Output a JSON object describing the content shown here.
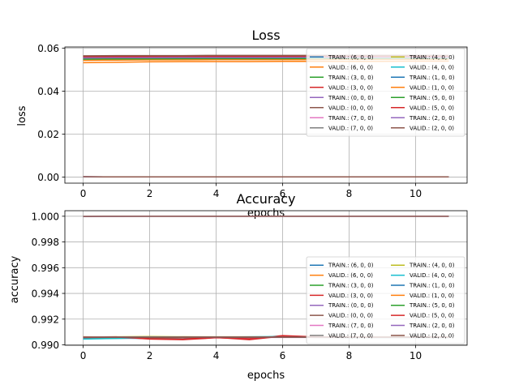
{
  "chart_data": [
    {
      "type": "line",
      "title": "Loss",
      "xlabel": "epochs",
      "ylabel": "loss",
      "xlim": [
        -0.55,
        11.55
      ],
      "ylim": [
        -0.0028,
        0.0605
      ],
      "xticks": [
        0,
        2,
        4,
        6,
        8,
        10
      ],
      "yticks": [
        0.0,
        0.02,
        0.04,
        0.06
      ],
      "ytick_labels": [
        "0.00",
        "0.02",
        "0.04",
        "0.06"
      ],
      "grid": true,
      "legend_position": "upper-right",
      "legend_columns": 2,
      "x": [
        0,
        1,
        2,
        3,
        4,
        5,
        6,
        7,
        8,
        9,
        10,
        11
      ],
      "series": [
        {
          "name": "TRAIN.: (6, 0, 0)",
          "color": "#1f77b4",
          "values": [
            0.055,
            0.0551,
            0.0551,
            0.0552,
            0.0552,
            0.0552,
            0.0553,
            0.0553,
            0.0553,
            0.0553,
            0.0553,
            0.0553
          ]
        },
        {
          "name": "VALID.: (6, 0, 0)",
          "color": "#ff7f0e",
          "values": [
            0.0532,
            0.0534,
            0.0536,
            0.0537,
            0.0537,
            0.0537,
            0.0538,
            0.0538,
            0.0538,
            0.0538,
            0.0539,
            0.0539
          ]
        },
        {
          "name": "TRAIN.: (3, 0, 0)",
          "color": "#2ca02c",
          "values": [
            0.0545,
            0.0546,
            0.0547,
            0.0547,
            0.0548,
            0.0548,
            0.0548,
            0.0549,
            0.0549,
            0.0549,
            0.0549,
            0.0549
          ]
        },
        {
          "name": "VALID.: (3, 0, 0)",
          "color": "#d62728",
          "values": [
            0.0562,
            0.0562,
            0.0563,
            0.0563,
            0.0563,
            0.0563,
            0.0564,
            0.0564,
            0.0564,
            0.0564,
            0.0564,
            0.0564
          ]
        },
        {
          "name": "TRAIN.: (0, 0, 0)",
          "color": "#9467bd",
          "values": [
            0.0002,
            0.0001,
            0.0001,
            0.0001,
            0.0001,
            0.0001,
            0.0001,
            0.0001,
            0.0001,
            0.0001,
            0.0001,
            0.0001
          ]
        },
        {
          "name": "VALID.: (0, 0, 0)",
          "color": "#8c564b",
          "values": [
            0.0002,
            0.0001,
            0.0001,
            0.0001,
            0.0001,
            0.0001,
            0.0001,
            0.0001,
            0.0001,
            0.0001,
            0.0001,
            0.0001
          ]
        },
        {
          "name": "TRAIN.: (7, 0, 0)",
          "color": "#e377c2",
          "values": [
            0.0556,
            0.0557,
            0.0557,
            0.0558,
            0.0558,
            0.0558,
            0.0558,
            0.0559,
            0.0559,
            0.0559,
            0.0559,
            0.0559
          ]
        },
        {
          "name": "VALID.: (7, 0, 0)",
          "color": "#7f7f7f",
          "values": [
            0.0558,
            0.0559,
            0.0559,
            0.0559,
            0.056,
            0.056,
            0.056,
            0.056,
            0.056,
            0.056,
            0.056,
            0.056
          ]
        },
        {
          "name": "TRAIN.: (4, 0, 0)",
          "color": "#bcbd22",
          "values": [
            0.0552,
            0.0553,
            0.0553,
            0.0554,
            0.0554,
            0.0554,
            0.0555,
            0.0555,
            0.0555,
            0.0555,
            0.0555,
            0.0555
          ]
        },
        {
          "name": "VALID.: (4, 0, 0)",
          "color": "#17becf",
          "values": [
            0.0547,
            0.0548,
            0.0548,
            0.0549,
            0.0549,
            0.0549,
            0.0549,
            0.055,
            0.055,
            0.055,
            0.055,
            0.055
          ]
        },
        {
          "name": "TRAIN.: (1, 0, 0)",
          "color": "#1f77b4",
          "values": [
            0.0551,
            0.0552,
            0.0552,
            0.0553,
            0.0553,
            0.0553,
            0.0553,
            0.0554,
            0.0554,
            0.0554,
            0.0554,
            0.0554
          ]
        },
        {
          "name": "VALID.: (1, 0, 0)",
          "color": "#ff7f0e",
          "values": [
            0.0543,
            0.0544,
            0.0545,
            0.0545,
            0.0546,
            0.0546,
            0.0546,
            0.0546,
            0.0547,
            0.0547,
            0.0547,
            0.0547
          ]
        },
        {
          "name": "TRAIN.: (5, 0, 0)",
          "color": "#2ca02c",
          "values": [
            0.0549,
            0.055,
            0.055,
            0.0551,
            0.0551,
            0.0551,
            0.0551,
            0.0552,
            0.0552,
            0.0552,
            0.0552,
            0.0552
          ]
        },
        {
          "name": "VALID.: (5, 0, 0)",
          "color": "#d62728",
          "values": [
            0.056,
            0.056,
            0.0561,
            0.0561,
            0.0561,
            0.0561,
            0.0562,
            0.0562,
            0.0562,
            0.0562,
            0.0562,
            0.0562
          ]
        },
        {
          "name": "TRAIN.: (2, 0, 0)",
          "color": "#9467bd",
          "values": [
            0.0554,
            0.0555,
            0.0555,
            0.0556,
            0.0556,
            0.0556,
            0.0556,
            0.0557,
            0.0557,
            0.0557,
            0.0557,
            0.0557
          ]
        },
        {
          "name": "VALID.: (2, 0, 0)",
          "color": "#8c564b",
          "values": [
            0.0564,
            0.0565,
            0.0565,
            0.0565,
            0.0566,
            0.0566,
            0.0566,
            0.0566,
            0.0566,
            0.0566,
            0.0566,
            0.0566
          ]
        }
      ]
    },
    {
      "type": "line",
      "title": "Accuracy",
      "xlabel": "epochs",
      "ylabel": "accuracy",
      "xlim": [
        -0.55,
        11.55
      ],
      "ylim": [
        0.98997,
        1.00043
      ],
      "xticks": [
        0,
        2,
        4,
        6,
        8,
        10
      ],
      "yticks": [
        0.99,
        0.992,
        0.994,
        0.996,
        0.998,
        1.0
      ],
      "ytick_labels": [
        "0.990",
        "0.992",
        "0.994",
        "0.996",
        "0.998",
        "1.000"
      ],
      "grid": true,
      "legend_position": "lower-right",
      "legend_columns": 2,
      "x": [
        0,
        1,
        2,
        3,
        4,
        5,
        6,
        7,
        8,
        9,
        10,
        11
      ],
      "series": [
        {
          "name": "TRAIN.: (6, 0, 0)",
          "color": "#1f77b4",
          "values": [
            0.99048,
            0.99052,
            0.9905,
            0.99055,
            0.99056,
            0.9906,
            0.99062,
            0.9906,
            0.99058,
            0.9906,
            0.99061,
            0.9906
          ]
        },
        {
          "name": "VALID.: (6, 0, 0)",
          "color": "#ff7f0e",
          "values": [
            0.99062,
            0.9906,
            0.99058,
            0.99062,
            0.9906,
            0.99058,
            0.99062,
            0.9906,
            0.9906,
            0.9906,
            0.9906,
            0.9906
          ]
        },
        {
          "name": "TRAIN.: (3, 0, 0)",
          "color": "#2ca02c",
          "values": [
            0.99055,
            0.99058,
            0.99058,
            0.9906,
            0.99058,
            0.9906,
            0.9906,
            0.99058,
            0.99058,
            0.99058,
            0.99058,
            0.99058
          ]
        },
        {
          "name": "VALID.: (3, 0, 0)",
          "color": "#d62728",
          "values": [
            0.9906,
            0.99062,
            0.99045,
            0.9904,
            0.99055,
            0.99048,
            0.99072,
            0.99062,
            0.9906,
            0.9906,
            0.9906,
            0.9906
          ]
        },
        {
          "name": "TRAIN.: (0, 0, 0)",
          "color": "#9467bd",
          "values": [
            0.99998,
            0.99999,
            1.0,
            1.0,
            1.0,
            1.0,
            1.0,
            1.0,
            1.0,
            1.0,
            1.0,
            1.0
          ]
        },
        {
          "name": "VALID.: (0, 0, 0)",
          "color": "#8c564b",
          "values": [
            0.99999,
            1.0,
            1.0,
            1.0,
            1.0,
            1.0,
            1.0,
            1.0,
            1.0,
            1.0,
            1.0,
            1.0
          ]
        },
        {
          "name": "TRAIN.: (7, 0, 0)",
          "color": "#e377c2",
          "values": [
            0.99056,
            0.99058,
            0.99058,
            0.99058,
            0.99058,
            0.99058,
            0.99058,
            0.99058,
            0.99058,
            0.99058,
            0.99058,
            0.99058
          ]
        },
        {
          "name": "VALID.: (7, 0, 0)",
          "color": "#7f7f7f",
          "values": [
            0.99058,
            0.99058,
            0.9906,
            0.9906,
            0.9906,
            0.9906,
            0.9906,
            0.9906,
            0.9906,
            0.9906,
            0.9906,
            0.9906
          ]
        },
        {
          "name": "TRAIN.: (4, 0, 0)",
          "color": "#bcbd22",
          "values": [
            0.9906,
            0.99062,
            0.99065,
            0.99062,
            0.99062,
            0.99062,
            0.99062,
            0.99062,
            0.99062,
            0.99062,
            0.99062,
            0.99062
          ]
        },
        {
          "name": "VALID.: (4, 0, 0)",
          "color": "#17becf",
          "values": [
            0.99045,
            0.9905,
            0.99055,
            0.99058,
            0.9906,
            0.99062,
            0.99065,
            0.9906,
            0.99058,
            0.99058,
            0.99058,
            0.99058
          ]
        },
        {
          "name": "TRAIN.: (1, 0, 0)",
          "color": "#1f77b4",
          "values": [
            0.99058,
            0.9906,
            0.9906,
            0.9906,
            0.9906,
            0.9906,
            0.9906,
            0.9906,
            0.9906,
            0.9906,
            0.9906,
            0.9906
          ]
        },
        {
          "name": "VALID.: (1, 0, 0)",
          "color": "#ff7f0e",
          "values": [
            0.9906,
            0.9906,
            0.99058,
            0.99058,
            0.9906,
            0.9906,
            0.9906,
            0.9906,
            0.9906,
            0.9906,
            0.9906,
            0.9906
          ]
        },
        {
          "name": "TRAIN.: (5, 0, 0)",
          "color": "#2ca02c",
          "values": [
            0.99058,
            0.99058,
            0.9906,
            0.9906,
            0.9906,
            0.9906,
            0.9906,
            0.9906,
            0.9906,
            0.9906,
            0.9906,
            0.9906
          ]
        },
        {
          "name": "VALID.: (5, 0, 0)",
          "color": "#d62728",
          "values": [
            0.99058,
            0.9906,
            0.99048,
            0.99045,
            0.99058,
            0.9904,
            0.99068,
            0.99062,
            0.9906,
            0.9906,
            0.9906,
            0.9906
          ]
        },
        {
          "name": "TRAIN.: (2, 0, 0)",
          "color": "#9467bd",
          "values": [
            0.9906,
            0.9906,
            0.9906,
            0.9906,
            0.9906,
            0.9906,
            0.9906,
            0.9906,
            0.9906,
            0.9906,
            0.9906,
            0.9906
          ]
        },
        {
          "name": "VALID.: (2, 0, 0)",
          "color": "#8c564b",
          "values": [
            0.9906,
            0.9906,
            0.99058,
            0.9906,
            0.9906,
            0.9906,
            0.9906,
            0.9906,
            0.9906,
            0.9906,
            0.9906,
            0.9906
          ]
        }
      ]
    }
  ]
}
